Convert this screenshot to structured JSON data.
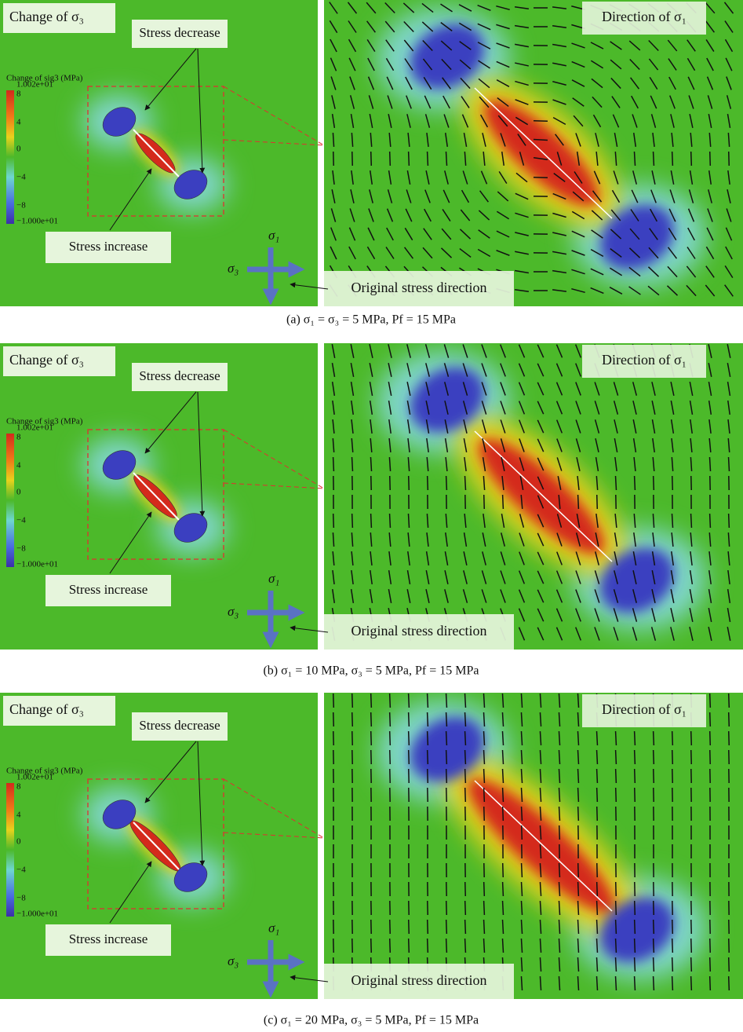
{
  "panels": [
    {
      "left_title": "Change of σ₃",
      "colorbar_title": "Change of sig3 (MPa)",
      "colorbar_ticks": [
        "1.002e+01",
        "8",
        "4",
        "0",
        "−4",
        "−8",
        "−1.000e+01"
      ],
      "decrease_label": "Stress decrease",
      "increase_label": "Stress increase",
      "axis_sigma1": "σ₁",
      "axis_sigma3": "σ₃",
      "right_title": "Direction of σ₁",
      "original_label": "Original stress direction",
      "caption": "(a) σ₁ = σ₃ = 5 MPa, Pf = 15 MPa"
    },
    {
      "left_title": "Change of σ₃",
      "colorbar_title": "Change of sig3 (MPa)",
      "colorbar_ticks": [
        "1.002e+01",
        "8",
        "4",
        "0",
        "−4",
        "−8",
        "−1.000e+01"
      ],
      "decrease_label": "Stress decrease",
      "increase_label": "Stress increase",
      "axis_sigma1": "σ₁",
      "axis_sigma3": "σ₃",
      "right_title": "Direction of σ₁",
      "original_label": "Original stress direction",
      "caption": "(b) σ₁ = 10 MPa, σ₃ = 5 MPa, Pf = 15 MPa"
    },
    {
      "left_title": "Change of σ₃",
      "colorbar_title": "Change of sig3 (MPa)",
      "colorbar_ticks": [
        "1.002e+01",
        "8",
        "4",
        "0",
        "−4",
        "−8",
        "−1.000e+01"
      ],
      "decrease_label": "Stress decrease",
      "increase_label": "Stress increase",
      "axis_sigma1": "σ₁",
      "axis_sigma3": "σ₃",
      "right_title": "Direction of σ₁",
      "original_label": "Original stress direction",
      "caption": "(c) σ₁ = 20 MPa, σ₃ = 5 MPa, Pf = 15 MPa"
    }
  ]
}
